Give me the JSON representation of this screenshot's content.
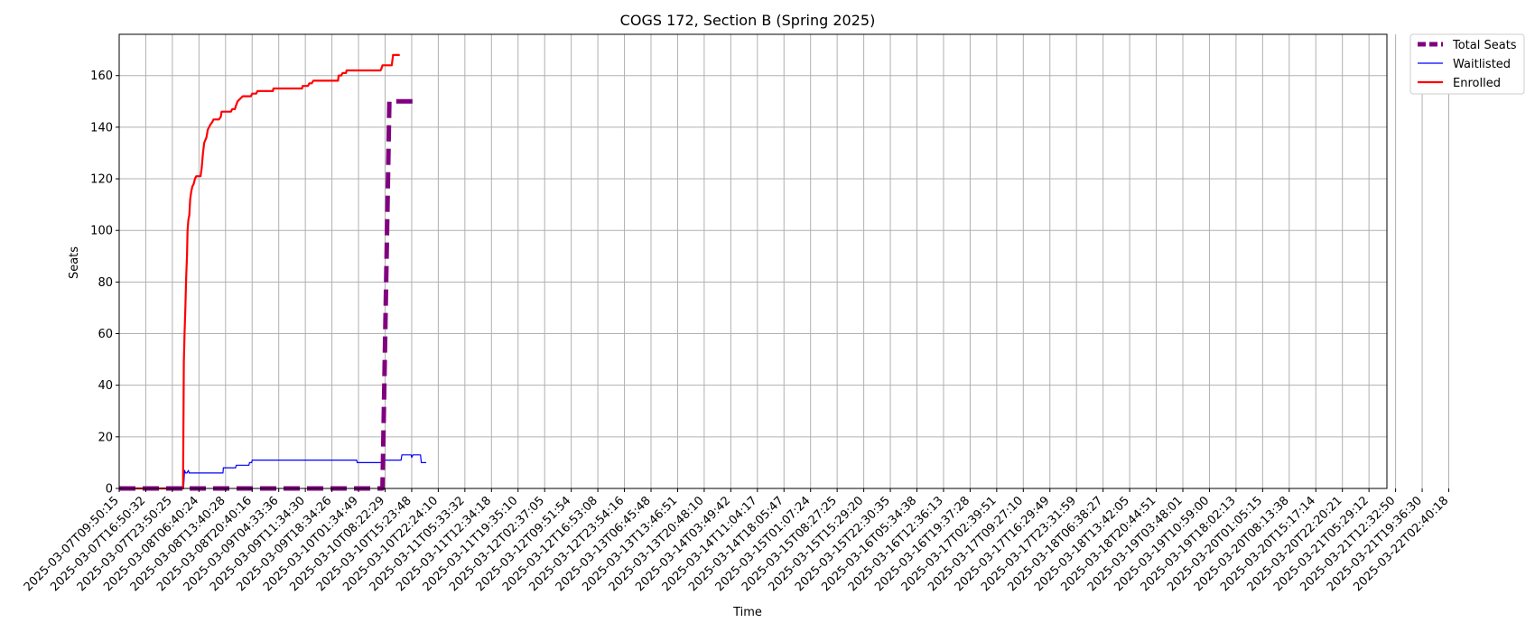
{
  "chart_data": {
    "type": "line",
    "title": "COGS 172, Section B (Spring 2025)",
    "xlabel": "Time",
    "ylabel": "Seats",
    "ylim": [
      0,
      176
    ],
    "yticks": [
      0,
      20,
      40,
      60,
      80,
      100,
      120,
      140,
      160
    ],
    "grid": true,
    "legend_position": "outside-top-right",
    "x_ticks": [
      "2025-03-07T09:50:15",
      "2025-03-07T16:50:32",
      "2025-03-07T23:50:25",
      "2025-03-08T06:40:24",
      "2025-03-08T13:40:28",
      "2025-03-08T20:40:16",
      "2025-03-09T04:33:36",
      "2025-03-09T11:34:30",
      "2025-03-09T18:34:26",
      "2025-03-10T01:34:49",
      "2025-03-10T08:22:29",
      "2025-03-10T15:23:48",
      "2025-03-10T22:24:10",
      "2025-03-11T05:33:32",
      "2025-03-11T12:34:18",
      "2025-03-11T19:35:10",
      "2025-03-12T02:37:05",
      "2025-03-12T09:51:54",
      "2025-03-12T16:53:08",
      "2025-03-12T23:54:16",
      "2025-03-13T06:45:48",
      "2025-03-13T13:46:51",
      "2025-03-13T20:48:10",
      "2025-03-14T03:49:42",
      "2025-03-14T11:04:17",
      "2025-03-14T18:05:47",
      "2025-03-15T01:07:24",
      "2025-03-15T08:27:25",
      "2025-03-15T15:29:20",
      "2025-03-15T22:30:35",
      "2025-03-16T05:34:38",
      "2025-03-16T12:36:13",
      "2025-03-16T19:37:28",
      "2025-03-17T02:39:51",
      "2025-03-17T09:27:10",
      "2025-03-17T16:29:49",
      "2025-03-17T23:31:59",
      "2025-03-18T06:38:27",
      "2025-03-18T13:42:05",
      "2025-03-18T20:44:51",
      "2025-03-19T03:48:01",
      "2025-03-19T10:59:00",
      "2025-03-19T18:02:13",
      "2025-03-20T01:05:15",
      "2025-03-20T08:13:38",
      "2025-03-20T15:17:14",
      "2025-03-20T22:20:21",
      "2025-03-21T05:29:12",
      "2025-03-21T12:32:50",
      "2025-03-21T19:36:30",
      "2025-03-22T02:40:18"
    ],
    "series": [
      {
        "name": "Total Seats",
        "color": "#800080",
        "style": "dashed",
        "points": [
          [
            0,
            0
          ],
          [
            9.88,
            0
          ],
          [
            9.9,
            0
          ],
          [
            10.16,
            150
          ],
          [
            10.2,
            150
          ],
          [
            11.2,
            150
          ]
        ]
      },
      {
        "name": "Waitlisted",
        "color": "#0000ff",
        "style": "solid",
        "points": [
          [
            0,
            0
          ],
          [
            2.42,
            0
          ],
          [
            2.46,
            7
          ],
          [
            2.5,
            6
          ],
          [
            2.55,
            6
          ],
          [
            2.6,
            7
          ],
          [
            2.63,
            6
          ],
          [
            3.9,
            6
          ],
          [
            3.92,
            8
          ],
          [
            4.38,
            8
          ],
          [
            4.4,
            9
          ],
          [
            4.88,
            9
          ],
          [
            4.9,
            10
          ],
          [
            4.98,
            10
          ],
          [
            5.0,
            11
          ],
          [
            8.93,
            11
          ],
          [
            8.95,
            10
          ],
          [
            9.93,
            10
          ],
          [
            9.95,
            11
          ],
          [
            10.6,
            11
          ],
          [
            10.63,
            13
          ],
          [
            10.98,
            13
          ],
          [
            11.0,
            12
          ],
          [
            11.05,
            13
          ],
          [
            11.33,
            13
          ],
          [
            11.36,
            10
          ],
          [
            11.55,
            10
          ]
        ]
      },
      {
        "name": "Enrolled",
        "color": "#ff0000",
        "style": "solid",
        "points": [
          [
            0,
            0
          ],
          [
            2.4,
            0
          ],
          [
            2.43,
            49
          ],
          [
            2.46,
            60
          ],
          [
            2.49,
            70
          ],
          [
            2.52,
            82
          ],
          [
            2.55,
            90
          ],
          [
            2.57,
            100
          ],
          [
            2.6,
            104
          ],
          [
            2.64,
            106
          ],
          [
            2.67,
            112
          ],
          [
            2.71,
            115
          ],
          [
            2.75,
            117
          ],
          [
            2.8,
            118
          ],
          [
            2.85,
            120
          ],
          [
            2.9,
            121
          ],
          [
            3.06,
            121
          ],
          [
            3.1,
            124
          ],
          [
            3.15,
            130
          ],
          [
            3.2,
            134
          ],
          [
            3.28,
            136
          ],
          [
            3.33,
            139
          ],
          [
            3.38,
            140
          ],
          [
            3.43,
            141
          ],
          [
            3.5,
            142
          ],
          [
            3.55,
            143
          ],
          [
            3.75,
            143
          ],
          [
            3.82,
            144
          ],
          [
            3.85,
            146
          ],
          [
            4.2,
            146
          ],
          [
            4.25,
            147
          ],
          [
            4.35,
            147
          ],
          [
            4.38,
            148
          ],
          [
            4.45,
            150
          ],
          [
            4.55,
            151
          ],
          [
            4.65,
            152
          ],
          [
            4.95,
            152
          ],
          [
            5.0,
            153
          ],
          [
            5.15,
            153
          ],
          [
            5.2,
            154
          ],
          [
            5.78,
            154
          ],
          [
            5.8,
            155
          ],
          [
            6.88,
            155
          ],
          [
            6.9,
            156
          ],
          [
            7.1,
            156
          ],
          [
            7.15,
            157
          ],
          [
            7.24,
            157
          ],
          [
            7.3,
            158
          ],
          [
            8.23,
            158
          ],
          [
            8.25,
            160
          ],
          [
            8.35,
            160
          ],
          [
            8.4,
            161
          ],
          [
            8.53,
            161
          ],
          [
            8.55,
            162
          ],
          [
            9.83,
            162
          ],
          [
            9.87,
            163
          ],
          [
            9.9,
            164
          ],
          [
            10.2,
            164
          ],
          [
            10.25,
            164
          ],
          [
            10.3,
            168
          ],
          [
            10.55,
            168
          ]
        ]
      }
    ]
  },
  "legend": [
    {
      "name": "Total Seats",
      "color": "#800080",
      "style": "dashed"
    },
    {
      "name": "Waitlisted",
      "color": "#0000ff",
      "style": "solid"
    },
    {
      "name": "Enrolled",
      "color": "#ff0000",
      "style": "solid"
    }
  ]
}
